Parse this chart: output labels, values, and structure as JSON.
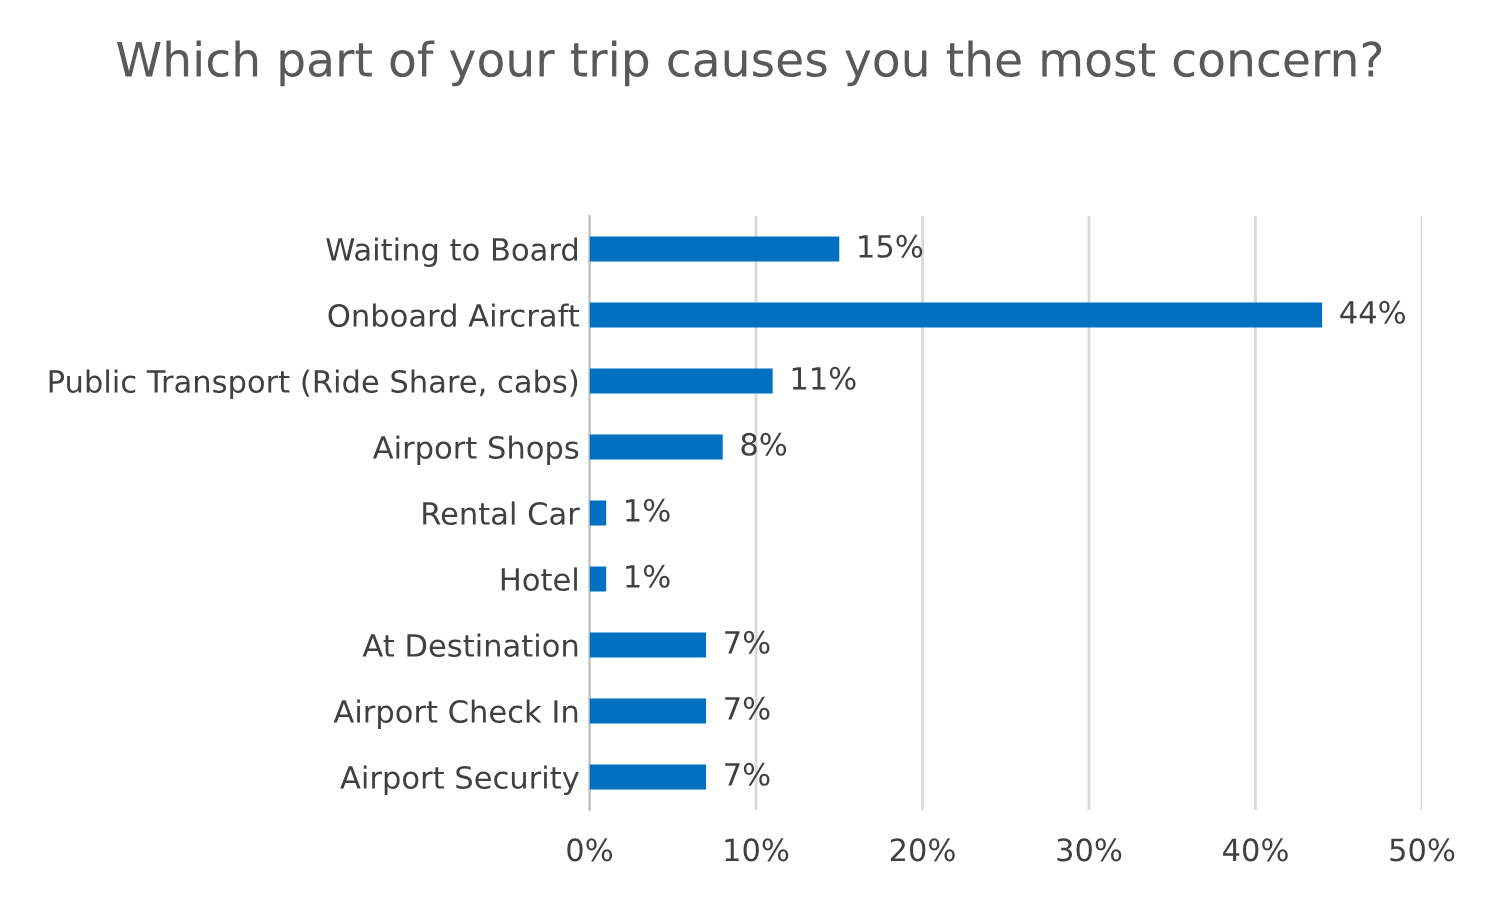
{
  "chart_data": {
    "type": "bar",
    "orientation": "horizontal",
    "title": "Which part of your trip causes you the most concern?",
    "categories": [
      "Waiting to Board",
      "Onboard Aircraft",
      "Public Transport (Ride Share, cabs)",
      "Airport Shops",
      "Rental Car",
      "Hotel",
      "At Destination",
      "Airport Check In",
      "Airport Security"
    ],
    "values": [
      15,
      44,
      11,
      8,
      1,
      1,
      7,
      7,
      7
    ],
    "value_labels": [
      "15%",
      "44%",
      "11%",
      "8%",
      "1%",
      "1%",
      "7%",
      "7%",
      "7%"
    ],
    "color": "#0070c0",
    "xlim": [
      0,
      50
    ],
    "xticks": [
      {
        "value": 0,
        "label": "0%"
      },
      {
        "value": 10,
        "label": "10%"
      },
      {
        "value": 20,
        "label": "20%"
      },
      {
        "value": 30,
        "label": "30%"
      },
      {
        "value": 40,
        "label": "40%"
      },
      {
        "value": 50,
        "label": "50%"
      }
    ],
    "grid": "x",
    "legend": false
  }
}
